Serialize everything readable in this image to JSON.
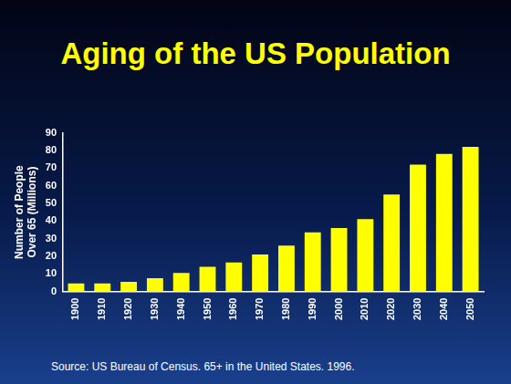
{
  "chart_data": {
    "type": "bar",
    "title": "Aging of the US Population",
    "y_label": [
      "Number of People",
      "Over 65 (Millions)"
    ],
    "source": "Source: US Bureau of Census. 65+ in the United States. 1996.",
    "categories": [
      "1900",
      "1910",
      "1920",
      "1930",
      "1940",
      "1950",
      "1960",
      "1970",
      "1980",
      "1990",
      "2000",
      "2010",
      "2020",
      "2030",
      "2040",
      "2050"
    ],
    "values": [
      4.5,
      4.5,
      5.5,
      7.5,
      10.5,
      14,
      16.5,
      21,
      26,
      33.5,
      36,
      41,
      55,
      72,
      78,
      82
    ],
    "color": "#ffff00",
    "ylim": [
      0,
      90
    ],
    "yticks": [
      0,
      10,
      20,
      30,
      40,
      50,
      60,
      70,
      80,
      90
    ],
    "grid": false
  }
}
